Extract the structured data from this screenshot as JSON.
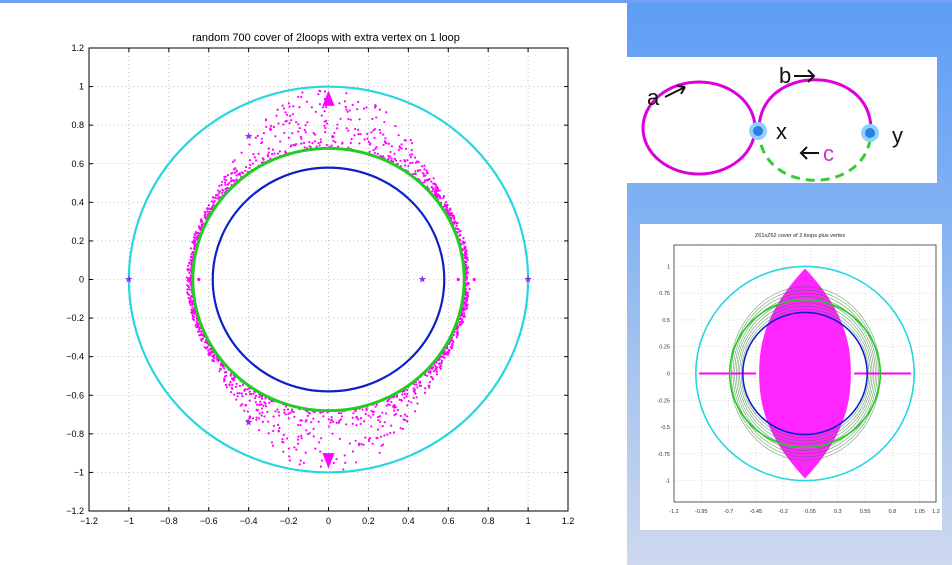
{
  "colors": {
    "rule": "#6fa2f5",
    "magenta": "#ff00ff",
    "cyan": "#26d6e0",
    "green": "#22cc22",
    "blue": "#0a22c8",
    "node": "#2a8ff0",
    "node_halo": "#8fd0ff",
    "violet": "#8833ee"
  },
  "chart_data": [
    {
      "type": "scatter",
      "title": "random 700 cover of 2loops with extra vertex on 1 loop",
      "xlim": [
        -1.2,
        1.2
      ],
      "ylim": [
        -1.2,
        1.2
      ],
      "xticks": [
        -1.2,
        -1,
        -0.8,
        -0.6,
        -0.4,
        -0.2,
        0,
        0.2,
        0.4,
        0.6,
        0.8,
        1,
        1.2
      ],
      "yticks": [
        -1.2,
        -1,
        -0.8,
        -0.6,
        -0.4,
        -0.2,
        0,
        0.2,
        0.4,
        0.6,
        0.8,
        1,
        1.2
      ],
      "xtick_labels": [
        "−1.2",
        "−1",
        "−0.8",
        "−0.6",
        "−0.4",
        "−0.2",
        "0",
        "0.2",
        "0.4",
        "0.6",
        "0.8",
        "1",
        "1.2"
      ],
      "ytick_labels": [
        "−1.2",
        "−1",
        "−0.8",
        "−0.6",
        "−0.4",
        "−0.2",
        "0",
        "0.2",
        "0.4",
        "0.6",
        "0.8",
        "1",
        "1.2"
      ],
      "grid": true,
      "circles": [
        {
          "color": "cyan",
          "cx": 0,
          "cy": 0,
          "rx": 1,
          "ry": 1
        },
        {
          "color": "green",
          "cx": 0,
          "cy": 0,
          "rx": 0.68,
          "ry": 0.68
        },
        {
          "color": "blue",
          "cx": 0,
          "cy": 0,
          "rx": 0.58,
          "ry": 0.58
        }
      ],
      "eigenvalue_cloud": {
        "color": "magenta",
        "inner_radius": 0.68,
        "peak": 0.98,
        "point_count": 1400
      },
      "axis_points": [
        [
          -1,
          0
        ],
        [
          -0.7,
          0
        ],
        [
          -0.65,
          0
        ],
        [
          0.47,
          0
        ],
        [
          0.65,
          0
        ],
        [
          0.73,
          0
        ],
        [
          1,
          0
        ]
      ],
      "star_points": [
        [
          -0.4,
          0.74
        ],
        [
          -0.4,
          -0.74
        ],
        [
          0.47,
          0
        ],
        [
          -1,
          0
        ],
        [
          1,
          0
        ]
      ]
    },
    {
      "type": "scatter",
      "title": "Z61xZ62 cover of 2 loops plus vertex",
      "xticks": [
        -1.2,
        -0.95,
        -0.7,
        -0.45,
        -0.2,
        0.05,
        0.3,
        0.55,
        0.8,
        1.05,
        1.2
      ],
      "xtick_labels": [
        "-1.2",
        "-0.95",
        "-0.7",
        "-0.45",
        "-0.2",
        "0.05",
        "0.3",
        "0.55",
        "0.8",
        "1.05",
        "1.2"
      ],
      "yticks": [
        1,
        0.75,
        0.5,
        0.25,
        0,
        -0.25,
        -0.5,
        -0.75,
        -1
      ],
      "ytick_labels": [
        "1",
        "0.75",
        "0.5",
        "0.25",
        "0",
        "-0.25",
        "-0.5",
        "-0.75",
        "-1"
      ],
      "xlim": [
        -1.2,
        1.2
      ],
      "ylim": [
        -1.2,
        1.2
      ],
      "grid": true,
      "circles": [
        {
          "color": "cyan",
          "cx": 0,
          "cy": 0,
          "rx": 1,
          "ry": 1
        },
        {
          "color": "green",
          "cx": 0,
          "cy": 0,
          "rx": 0.69,
          "ry": 0.69
        },
        {
          "color": "blue",
          "cx": 0,
          "cy": 0,
          "rx": 0.57,
          "ry": 0.57
        }
      ],
      "magenta_segments": [
        [
          -0.97,
          -0.45
        ],
        [
          0.45,
          0.97
        ]
      ]
    }
  ],
  "graph": {
    "label_a": "a",
    "label_b": "b",
    "label_c": "c",
    "label_x": "x",
    "label_y": "y"
  }
}
